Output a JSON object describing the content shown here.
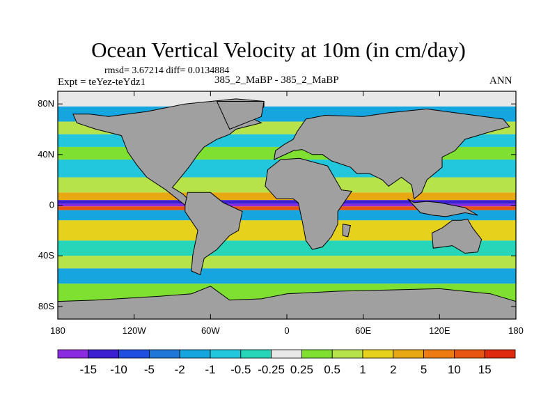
{
  "chart_data": {
    "type": "heatmap",
    "title": "Ocean Vertical Velocity at 10m (in cm/day)",
    "stats_label": "rmsd= 3.67214 diff= 0.0134884",
    "experiment_label": "Expt = teYez-teYdz1",
    "comparison_label": "385_2_MaBP - 385_2_MaBP",
    "season_label": "ANN",
    "units": "cm/day",
    "x_axis": {
      "range": [
        -180,
        180
      ],
      "tick_values": [
        -180,
        -120,
        -60,
        0,
        60,
        120,
        180
      ],
      "tick_labels": [
        "180",
        "120W",
        "60W",
        "0",
        "60E",
        "120E",
        "180"
      ]
    },
    "y_axis": {
      "range": [
        -90,
        90
      ],
      "tick_values": [
        80,
        40,
        0,
        -40,
        -80
      ],
      "tick_labels": [
        "80N",
        "40N",
        "0",
        "40S",
        "80S"
      ]
    },
    "colorbar": {
      "levels": [
        "-15",
        "-10",
        "-5",
        "-2",
        "-1",
        "-0.5",
        "-0.25",
        "0.25",
        "0.5",
        "1",
        "2",
        "5",
        "10",
        "15"
      ],
      "colors": [
        "#8a2be2",
        "#3b1fd0",
        "#1e4fe0",
        "#1f78d8",
        "#15a5df",
        "#22c6dd",
        "#27d6b8",
        "#e8e8e8",
        "#7fe032",
        "#b6e34a",
        "#e6d21c",
        "#e8a812",
        "#ee7a12",
        "#e85510",
        "#e02a10"
      ]
    },
    "land_color": "#a0a0a0",
    "field_bands": [
      {
        "lat_range": [
          78,
          90
        ],
        "value": 0.1
      },
      {
        "lat_range": [
          66,
          78
        ],
        "value": -1.5
      },
      {
        "lat_range": [
          56,
          66
        ],
        "value": 0.6
      },
      {
        "lat_range": [
          46,
          56
        ],
        "value": -0.8
      },
      {
        "lat_range": [
          36,
          46
        ],
        "value": 0.4
      },
      {
        "lat_range": [
          22,
          36
        ],
        "value": -0.6
      },
      {
        "lat_range": [
          10,
          22
        ],
        "value": 0.8
      },
      {
        "lat_range": [
          4,
          10
        ],
        "value": 4
      },
      {
        "lat_range": [
          1,
          4
        ],
        "value": -12
      },
      {
        "lat_range": [
          -1,
          1
        ],
        "value": -18
      },
      {
        "lat_range": [
          -4,
          -1
        ],
        "value": 14
      },
      {
        "lat_range": [
          -12,
          -4
        ],
        "value": -1.5
      },
      {
        "lat_range": [
          -28,
          -12
        ],
        "value": 1.2
      },
      {
        "lat_range": [
          -40,
          -28
        ],
        "value": -0.5
      },
      {
        "lat_range": [
          -50,
          -40
        ],
        "value": 0.7
      },
      {
        "lat_range": [
          -62,
          -50
        ],
        "value": -1.2
      },
      {
        "lat_range": [
          -90,
          -62
        ],
        "value": 0.3
      }
    ],
    "land_polygons": [
      {
        "name": "North America",
        "lonlat": [
          [
            -18,
            78
          ],
          [
            -22,
            72
          ],
          [
            -30,
            70
          ],
          [
            -20,
            65
          ],
          [
            -40,
            60
          ],
          [
            -45,
            56
          ],
          [
            -55,
            52
          ],
          [
            -65,
            46
          ],
          [
            -70,
            40
          ],
          [
            -77,
            30
          ],
          [
            -85,
            20
          ],
          [
            -90,
            14
          ],
          [
            -82,
            9
          ],
          [
            -78,
            5
          ],
          [
            -80,
            0
          ],
          [
            -95,
            12
          ],
          [
            -110,
            22
          ],
          [
            -118,
            32
          ],
          [
            -125,
            42
          ],
          [
            -130,
            55
          ],
          [
            -150,
            60
          ],
          [
            -165,
            65
          ],
          [
            -168,
            72
          ],
          [
            -155,
            72
          ],
          [
            -140,
            70
          ],
          [
            -110,
            74
          ],
          [
            -80,
            80
          ],
          [
            -40,
            84
          ],
          [
            -18,
            82
          ]
        ]
      },
      {
        "name": "South America",
        "lonlat": [
          [
            -80,
            0
          ],
          [
            -78,
            10
          ],
          [
            -60,
            10
          ],
          [
            -50,
            2
          ],
          [
            -35,
            -5
          ],
          [
            -38,
            -20
          ],
          [
            -45,
            -24
          ],
          [
            -55,
            -35
          ],
          [
            -65,
            -42
          ],
          [
            -68,
            -55
          ],
          [
            -75,
            -52
          ],
          [
            -74,
            -40
          ],
          [
            -70,
            -20
          ],
          [
            -80,
            -5
          ]
        ]
      },
      {
        "name": "Europe and Asia",
        "lonlat": [
          [
            -10,
            36
          ],
          [
            -9,
            43
          ],
          [
            -2,
            48
          ],
          [
            5,
            52
          ],
          [
            8,
            58
          ],
          [
            15,
            68
          ],
          [
            30,
            71
          ],
          [
            60,
            70
          ],
          [
            80,
            73
          ],
          [
            110,
            76
          ],
          [
            140,
            72
          ],
          [
            170,
            68
          ],
          [
            175,
            62
          ],
          [
            160,
            58
          ],
          [
            140,
            52
          ],
          [
            132,
            43
          ],
          [
            122,
            38
          ],
          [
            122,
            30
          ],
          [
            110,
            20
          ],
          [
            106,
            10
          ],
          [
            100,
            5
          ],
          [
            98,
            16
          ],
          [
            90,
            22
          ],
          [
            80,
            15
          ],
          [
            75,
            20
          ],
          [
            65,
            25
          ],
          [
            55,
            25
          ],
          [
            50,
            30
          ],
          [
            35,
            35
          ],
          [
            28,
            40
          ],
          [
            20,
            40
          ],
          [
            12,
            44
          ],
          [
            5,
            43
          ]
        ]
      },
      {
        "name": "Africa",
        "lonlat": [
          [
            -17,
            15
          ],
          [
            -15,
            28
          ],
          [
            -5,
            36
          ],
          [
            10,
            37
          ],
          [
            32,
            31
          ],
          [
            43,
            12
          ],
          [
            51,
            11
          ],
          [
            40,
            -5
          ],
          [
            40,
            -15
          ],
          [
            35,
            -25
          ],
          [
            28,
            -33
          ],
          [
            20,
            -35
          ],
          [
            15,
            -28
          ],
          [
            12,
            -12
          ],
          [
            9,
            2
          ],
          [
            5,
            5
          ],
          [
            -8,
            5
          ]
        ]
      },
      {
        "name": "Australia",
        "lonlat": [
          [
            114,
            -22
          ],
          [
            122,
            -18
          ],
          [
            130,
            -12
          ],
          [
            137,
            -12
          ],
          [
            142,
            -11
          ],
          [
            146,
            -18
          ],
          [
            153,
            -27
          ],
          [
            150,
            -37
          ],
          [
            140,
            -38
          ],
          [
            130,
            -32
          ],
          [
            115,
            -34
          ]
        ]
      },
      {
        "name": "Antarctica",
        "lonlat": [
          [
            -180,
            -90
          ],
          [
            -180,
            -76
          ],
          [
            -150,
            -75
          ],
          [
            -100,
            -72
          ],
          [
            -75,
            -70
          ],
          [
            -60,
            -64
          ],
          [
            -45,
            -75
          ],
          [
            -20,
            -74
          ],
          [
            0,
            -70
          ],
          [
            40,
            -68
          ],
          [
            80,
            -67
          ],
          [
            120,
            -66
          ],
          [
            160,
            -70
          ],
          [
            180,
            -76
          ],
          [
            180,
            -90
          ]
        ]
      },
      {
        "name": "Greenland",
        "lonlat": [
          [
            -55,
            82
          ],
          [
            -45,
            60
          ],
          [
            -20,
            70
          ],
          [
            -18,
            82
          ]
        ]
      },
      {
        "name": "Madagascar",
        "lonlat": [
          [
            44,
            -15
          ],
          [
            50,
            -16
          ],
          [
            48,
            -25
          ],
          [
            44,
            -24
          ]
        ]
      },
      {
        "name": "Indonesia",
        "lonlat": [
          [
            95,
            5
          ],
          [
            105,
            -6
          ],
          [
            115,
            -8
          ],
          [
            125,
            -9
          ],
          [
            140,
            -6
          ],
          [
            150,
            -8
          ],
          [
            140,
            -2
          ],
          [
            120,
            2
          ],
          [
            110,
            3
          ],
          [
            100,
            2
          ]
        ]
      }
    ]
  }
}
